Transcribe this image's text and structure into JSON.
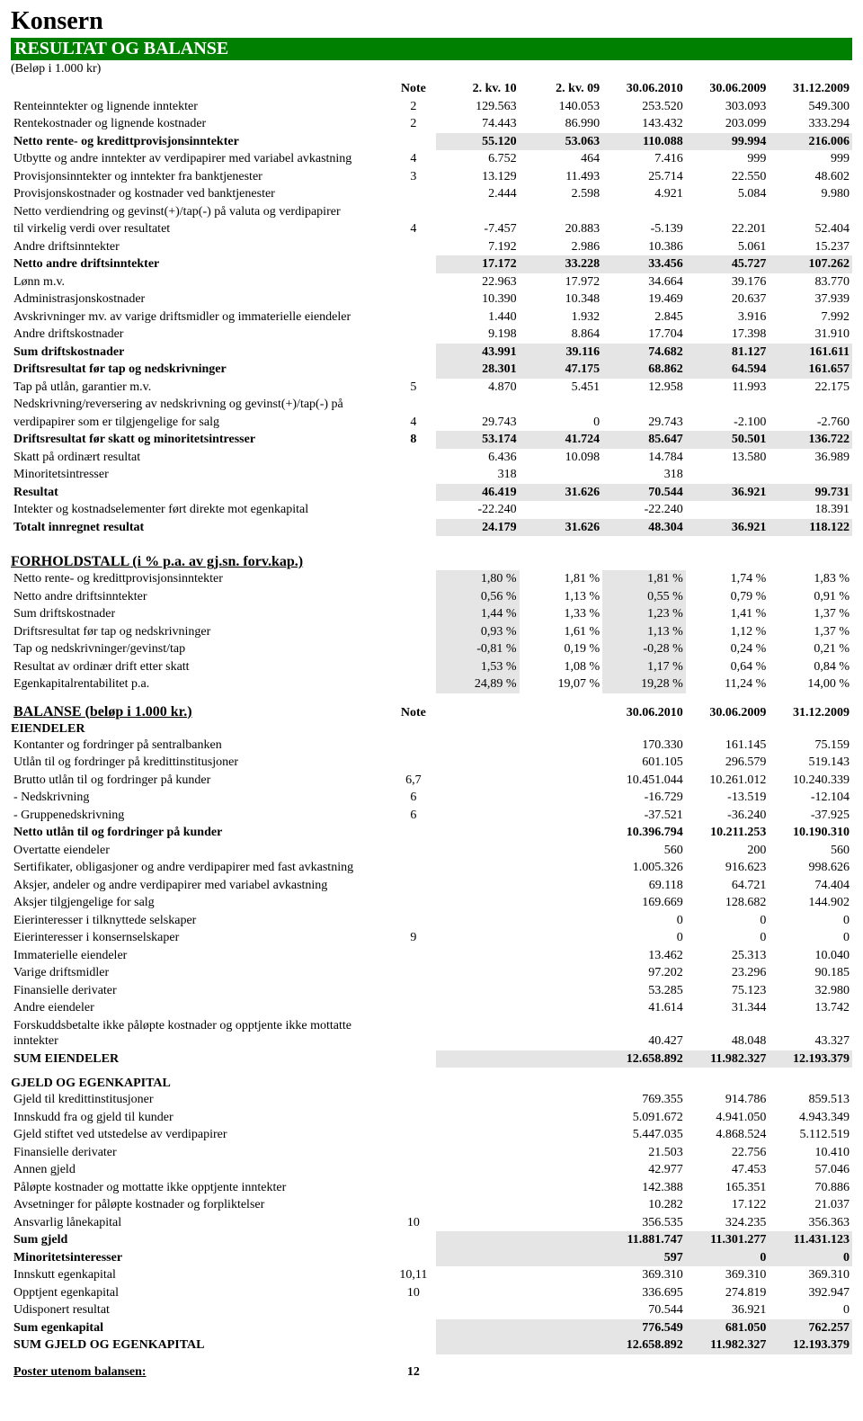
{
  "title": "Konsern",
  "section_title": "RESULTAT OG BALANSE",
  "subtitle": "(Beløp i 1.000 kr)",
  "colors": {
    "section_bg": "#008000",
    "shade": "#e5e5e5"
  },
  "resultat": {
    "header": {
      "note": "Note",
      "cols": [
        "2. kv. 10",
        "2. kv. 09",
        "30.06.2010",
        "30.06.2009",
        "31.12.2009"
      ]
    },
    "rows": [
      {
        "label": "Renteinntekter og lignende inntekter",
        "note": "2",
        "v": [
          "129.563",
          "140.053",
          "253.520",
          "303.093",
          "549.300"
        ]
      },
      {
        "label": "Rentekostnader og lignende kostnader",
        "note": "2",
        "v": [
          "74.443",
          "86.990",
          "143.432",
          "203.099",
          "333.294"
        ]
      },
      {
        "label": "Netto rente- og kredittprovisjonsinntekter",
        "note": "",
        "v": [
          "55.120",
          "53.063",
          "110.088",
          "99.994",
          "216.006"
        ],
        "bold": true,
        "shade": true
      },
      {
        "label": "Utbytte og andre inntekter av verdipapirer med variabel avkastning",
        "note": "4",
        "v": [
          "6.752",
          "464",
          "7.416",
          "999",
          "999"
        ]
      },
      {
        "label": "Provisjonsinntekter og inntekter fra banktjenester",
        "note": "3",
        "v": [
          "13.129",
          "11.493",
          "25.714",
          "22.550",
          "48.602"
        ]
      },
      {
        "label": "Provisjonskostnader og kostnader ved banktjenester",
        "note": "",
        "v": [
          "2.444",
          "2.598",
          "4.921",
          "5.084",
          "9.980"
        ]
      },
      {
        "label": "Netto verdiendring og gevinst(+)/tap(-) på valuta og verdipapirer",
        "note": "",
        "v": [
          "",
          "",
          "",
          "",
          ""
        ]
      },
      {
        "label": "til virkelig verdi over resultatet",
        "note": "4",
        "v": [
          "-7.457",
          "20.883",
          "-5.139",
          "22.201",
          "52.404"
        ]
      },
      {
        "label": "Andre driftsinntekter",
        "note": "",
        "v": [
          "7.192",
          "2.986",
          "10.386",
          "5.061",
          "15.237"
        ]
      },
      {
        "label": "Netto andre driftsinntekter",
        "note": "",
        "v": [
          "17.172",
          "33.228",
          "33.456",
          "45.727",
          "107.262"
        ],
        "bold": true,
        "shade": true
      },
      {
        "label": "Lønn m.v.",
        "note": "",
        "v": [
          "22.963",
          "17.972",
          "34.664",
          "39.176",
          "83.770"
        ]
      },
      {
        "label": "Administrasjonskostnader",
        "note": "",
        "v": [
          "10.390",
          "10.348",
          "19.469",
          "20.637",
          "37.939"
        ]
      },
      {
        "label": "Avskrivninger mv. av varige driftsmidler og immaterielle eiendeler",
        "note": "",
        "v": [
          "1.440",
          "1.932",
          "2.845",
          "3.916",
          "7.992"
        ]
      },
      {
        "label": "Andre driftskostnader",
        "note": "",
        "v": [
          "9.198",
          "8.864",
          "17.704",
          "17.398",
          "31.910"
        ]
      },
      {
        "label": "Sum driftskostnader",
        "note": "",
        "v": [
          "43.991",
          "39.116",
          "74.682",
          "81.127",
          "161.611"
        ],
        "bold": true,
        "shade": true
      },
      {
        "label": "Driftsresultat før tap og nedskrivninger",
        "note": "",
        "v": [
          "28.301",
          "47.175",
          "68.862",
          "64.594",
          "161.657"
        ],
        "bold": true,
        "shade": true
      },
      {
        "label": "Tap på utlån, garantier m.v.",
        "note": "5",
        "v": [
          "4.870",
          "5.451",
          "12.958",
          "11.993",
          "22.175"
        ]
      },
      {
        "label": "Nedskrivning/reversering av nedskrivning og gevinst(+)/tap(-) på",
        "note": "",
        "v": [
          "",
          "",
          "",
          "",
          ""
        ]
      },
      {
        "label": "verdipapirer som er tilgjengelige for salg",
        "note": "4",
        "v": [
          "29.743",
          "0",
          "29.743",
          "-2.100",
          "-2.760"
        ]
      },
      {
        "label": "Driftsresultat før skatt og minoritetsintresser",
        "note": "8",
        "v": [
          "53.174",
          "41.724",
          "85.647",
          "50.501",
          "136.722"
        ],
        "bold": true,
        "shade": true
      },
      {
        "label": "Skatt på ordinært resultat",
        "note": "",
        "v": [
          "6.436",
          "10.098",
          "14.784",
          "13.580",
          "36.989"
        ]
      },
      {
        "label": "Minoritetsintresser",
        "note": "",
        "v": [
          "318",
          "",
          "318",
          "",
          ""
        ]
      },
      {
        "label": "Resultat",
        "note": "",
        "v": [
          "46.419",
          "31.626",
          "70.544",
          "36.921",
          "99.731"
        ],
        "bold": true,
        "shade": true
      },
      {
        "label": "Intekter og kostnadselementer ført direkte mot egenkapital",
        "note": "",
        "v": [
          "-22.240",
          "",
          "-22.240",
          "",
          "18.391"
        ]
      },
      {
        "label": "Totalt innregnet resultat",
        "note": "",
        "v": [
          "24.179",
          "31.626",
          "48.304",
          "36.921",
          "118.122"
        ],
        "bold": true,
        "shade": true
      }
    ]
  },
  "forhold": {
    "title": "FORHOLDSTALL (i % p.a. av gj.sn. forv.kap.)",
    "rows": [
      {
        "label": "Netto rente- og kredittprovisjonsinntekter",
        "v": [
          "1,80 %",
          "1,81 %",
          "1,81 %",
          "1,74 %",
          "1,83 %"
        ]
      },
      {
        "label": "Netto andre driftsinntekter",
        "v": [
          "0,56 %",
          "1,13 %",
          "0,55 %",
          "0,79 %",
          "0,91 %"
        ]
      },
      {
        "label": "Sum driftskostnader",
        "v": [
          "1,44 %",
          "1,33 %",
          "1,23 %",
          "1,41 %",
          "1,37 %"
        ]
      },
      {
        "label": "Driftsresultat før tap og nedskrivninger",
        "v": [
          "0,93 %",
          "1,61 %",
          "1,13 %",
          "1,12 %",
          "1,37 %"
        ]
      },
      {
        "label": "Tap og nedskrivninger/gevinst/tap",
        "v": [
          "-0,81 %",
          "0,19 %",
          "-0,28 %",
          "0,24 %",
          "0,21 %"
        ]
      },
      {
        "label": "Resultat av ordinær drift etter skatt",
        "v": [
          "1,53 %",
          "1,08 %",
          "1,17 %",
          "0,64 %",
          "0,84 %"
        ]
      },
      {
        "label": "Egenkapitalrentabilitet p.a.",
        "v": [
          "24,89 %",
          "19,07 %",
          "19,28 %",
          "11,24 %",
          "14,00 %"
        ]
      }
    ]
  },
  "balanse": {
    "title": "BALANSE  (beløp i 1.000 kr.)",
    "header": {
      "note": "Note",
      "cols": [
        "",
        "",
        "30.06.2010",
        "30.06.2009",
        "31.12.2009"
      ]
    },
    "eiendeler_label": "EIENDELER",
    "eiendeler": [
      {
        "label": "Kontanter og fordringer på sentralbanken",
        "note": "",
        "v": [
          "",
          "",
          "170.330",
          "161.145",
          "75.159"
        ]
      },
      {
        "label": "Utlån til og fordringer på kredittinstitusjoner",
        "note": "",
        "v": [
          "",
          "",
          "601.105",
          "296.579",
          "519.143"
        ]
      },
      {
        "label": "Brutto utlån til og fordringer på kunder",
        "note": "6,7",
        "v": [
          "",
          "",
          "10.451.044",
          "10.261.012",
          "10.240.339"
        ]
      },
      {
        "label": " - Nedskrivning",
        "note": "6",
        "v": [
          "",
          "",
          "-16.729",
          "-13.519",
          "-12.104"
        ]
      },
      {
        "label": " - Gruppenedskrivning",
        "note": "6",
        "v": [
          "",
          "",
          "-37.521",
          "-36.240",
          "-37.925"
        ]
      },
      {
        "label": "Netto utlån til og fordringer på kunder",
        "note": "",
        "v": [
          "",
          "",
          "10.396.794",
          "10.211.253",
          "10.190.310"
        ],
        "bold": true
      },
      {
        "label": "Overtatte eiendeler",
        "note": "",
        "v": [
          "",
          "",
          "560",
          "200",
          "560"
        ]
      },
      {
        "label": "Sertifikater, obligasjoner og andre verdipapirer med fast avkastning",
        "note": "",
        "v": [
          "",
          "",
          "1.005.326",
          "916.623",
          "998.626"
        ]
      },
      {
        "label": "Aksjer, andeler og andre verdipapirer med variabel avkastning",
        "note": "",
        "v": [
          "",
          "",
          "69.118",
          "64.721",
          "74.404"
        ]
      },
      {
        "label": "Aksjer tilgjengelige for salg",
        "note": "",
        "v": [
          "",
          "",
          "169.669",
          "128.682",
          "144.902"
        ]
      },
      {
        "label": "Eierinteresser i tilknyttede selskaper",
        "note": "",
        "v": [
          "",
          "",
          "0",
          "0",
          "0"
        ]
      },
      {
        "label": "Eierinteresser i konsernselskaper",
        "note": "9",
        "v": [
          "",
          "",
          "0",
          "0",
          "0"
        ]
      },
      {
        "label": "Immaterielle eiendeler",
        "note": "",
        "v": [
          "",
          "",
          "13.462",
          "25.313",
          "10.040"
        ]
      },
      {
        "label": "Varige driftsmidler",
        "note": "",
        "v": [
          "",
          "",
          "97.202",
          "23.296",
          "90.185"
        ]
      },
      {
        "label": "Finansielle derivater",
        "note": "",
        "v": [
          "",
          "",
          "53.285",
          "75.123",
          "32.980"
        ]
      },
      {
        "label": "Andre eiendeler",
        "note": "",
        "v": [
          "",
          "",
          "41.614",
          "31.344",
          "13.742"
        ]
      },
      {
        "label": "Forskuddsbetalte ikke påløpte kostnader og opptjente ikke mottatte inntekter",
        "note": "",
        "v": [
          "",
          "",
          "40.427",
          "48.048",
          "43.327"
        ]
      },
      {
        "label": "SUM EIENDELER",
        "note": "",
        "v": [
          "",
          "",
          "12.658.892",
          "11.982.327",
          "12.193.379"
        ],
        "bold": true,
        "shade": true
      }
    ],
    "gjeld_label": "GJELD OG EGENKAPITAL",
    "gjeld": [
      {
        "label": "Gjeld til kredittinstitusjoner",
        "note": "",
        "v": [
          "",
          "",
          "769.355",
          "914.786",
          "859.513"
        ]
      },
      {
        "label": "Innskudd fra og gjeld til kunder",
        "note": "",
        "v": [
          "",
          "",
          "5.091.672",
          "4.941.050",
          "4.943.349"
        ]
      },
      {
        "label": "Gjeld stiftet ved utstedelse av verdipapirer",
        "note": "",
        "v": [
          "",
          "",
          "5.447.035",
          "4.868.524",
          "5.112.519"
        ]
      },
      {
        "label": "Finansielle derivater",
        "note": "",
        "v": [
          "",
          "",
          "21.503",
          "22.756",
          "10.410"
        ]
      },
      {
        "label": "Annen gjeld",
        "note": "",
        "v": [
          "",
          "",
          "42.977",
          "47.453",
          "57.046"
        ]
      },
      {
        "label": "Påløpte kostnader og mottatte ikke opptjente inntekter",
        "note": "",
        "v": [
          "",
          "",
          "142.388",
          "165.351",
          "70.886"
        ]
      },
      {
        "label": "Avsetninger for påløpte kostnader og forpliktelser",
        "note": "",
        "v": [
          "",
          "",
          "10.282",
          "17.122",
          "21.037"
        ]
      },
      {
        "label": "Ansvarlig lånekapital",
        "note": "10",
        "v": [
          "",
          "",
          "356.535",
          "324.235",
          "356.363"
        ]
      },
      {
        "label": "Sum gjeld",
        "note": "",
        "v": [
          "",
          "",
          "11.881.747",
          "11.301.277",
          "11.431.123"
        ],
        "bold": true,
        "shade": true
      },
      {
        "label": "Minoritetsinteresser",
        "note": "",
        "v": [
          "",
          "",
          "597",
          "0",
          "0"
        ],
        "bold": true,
        "shade": true
      },
      {
        "label": "Innskutt egenkapital",
        "note": "10,11",
        "v": [
          "",
          "",
          "369.310",
          "369.310",
          "369.310"
        ]
      },
      {
        "label": "Opptjent egenkapital",
        "note": "10",
        "v": [
          "",
          "",
          "336.695",
          "274.819",
          "392.947"
        ]
      },
      {
        "label": "Udisponert resultat",
        "note": "",
        "v": [
          "",
          "",
          "70.544",
          "36.921",
          "0"
        ]
      },
      {
        "label": "Sum egenkapital",
        "note": "",
        "v": [
          "",
          "",
          "776.549",
          "681.050",
          "762.257"
        ],
        "bold": true,
        "shade": true
      },
      {
        "label": "SUM GJELD OG EGENKAPITAL",
        "note": "",
        "v": [
          "",
          "",
          "12.658.892",
          "11.982.327",
          "12.193.379"
        ],
        "bold": true,
        "shade": true
      }
    ]
  },
  "footer_note": {
    "label": "Poster utenom balansen:",
    "note": "12"
  }
}
